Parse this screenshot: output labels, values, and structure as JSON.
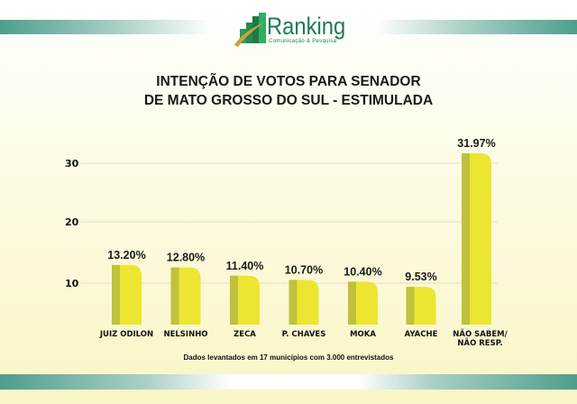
{
  "header": {
    "logo_name": "Ranking",
    "logo_subtitle": "Comunicação & Pesquisa",
    "brand_color": "#1e7a55"
  },
  "chart_data": {
    "type": "bar",
    "title_line1": "INTENÇÃO DE VOTOS PARA SENADOR",
    "title_line2": "DE MATO GROSSO DO SUL - ESTIMULADA",
    "categories": [
      "JUIZ ODILON",
      "NELSINHO",
      "ZECA",
      "P. CHAVES",
      "MOKA",
      "AYACHE",
      [
        "NÃO SABEM/",
        "NÃO RESP."
      ]
    ],
    "values": [
      13.2,
      12.8,
      11.4,
      10.7,
      10.4,
      9.53,
      31.97
    ],
    "value_labels": [
      "13.20%",
      "12.80%",
      "11.40%",
      "10.70%",
      "10.40%",
      "9.53%",
      "31.97%"
    ],
    "yticks": [
      "10",
      "20",
      "30"
    ],
    "grid": true,
    "bar_color": "#ece532",
    "bar_shade_color": "#bfc23a",
    "xlabel": "",
    "ylabel": ""
  },
  "footer": {
    "note": "Dados levantados em 17 municípios com 3.000 entrevistados"
  }
}
